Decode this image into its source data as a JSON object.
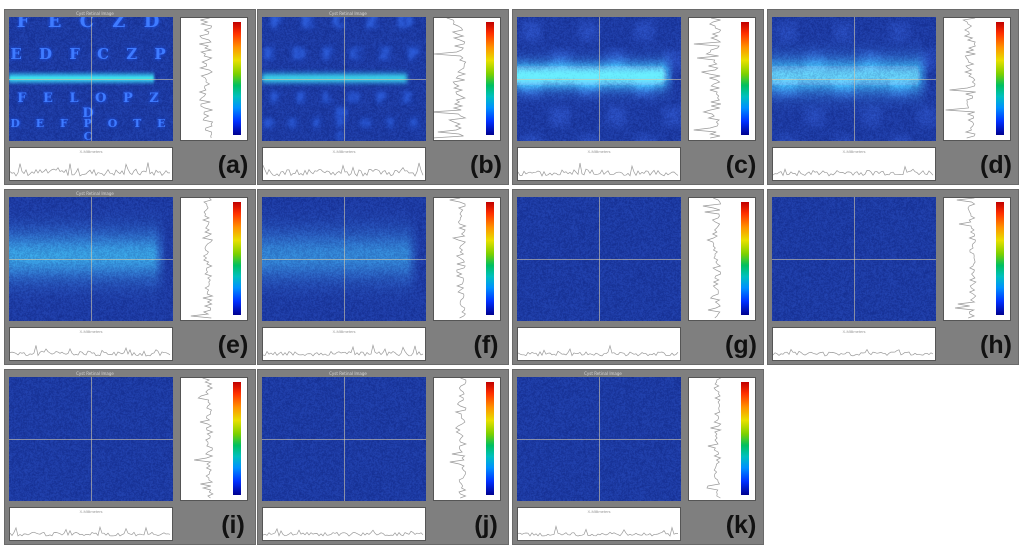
{
  "panels": [
    {
      "label": "(a)",
      "window_title": "Cyst Retinal Image",
      "bottom_axis": "X-Millimeters",
      "scene": "chart-sharp",
      "intensity": 1.0
    },
    {
      "label": "(b)",
      "window_title": "Cyst Retinal Image",
      "bottom_axis": "X-Millimeters",
      "scene": "chart-blur",
      "intensity": 0.9
    },
    {
      "label": "(c)",
      "window_title": "",
      "bottom_axis": "X-Millimeters",
      "scene": "band-strong",
      "intensity": 0.8
    },
    {
      "label": "(d)",
      "window_title": "",
      "bottom_axis": "X-Millimeters",
      "scene": "band-medium",
      "intensity": 0.65
    },
    {
      "label": "(e)",
      "window_title": "Cyst Retinal Image",
      "bottom_axis": "X-Millimeters",
      "scene": "band-faint",
      "intensity": 0.5
    },
    {
      "label": "(f)",
      "window_title": "",
      "bottom_axis": "X-Millimeters",
      "scene": "band-faint",
      "intensity": 0.4
    },
    {
      "label": "(g)",
      "window_title": "",
      "bottom_axis": "",
      "scene": "noise",
      "intensity": 0.3
    },
    {
      "label": "(h)",
      "window_title": "",
      "bottom_axis": "X-Millimeters",
      "scene": "noise",
      "intensity": 0.25
    },
    {
      "label": "(i)",
      "window_title": "Cyst Retinal Image",
      "bottom_axis": "X-Millimeters",
      "scene": "noise",
      "intensity": 0.2
    },
    {
      "label": "(j)",
      "window_title": "Cyst Retinal Image",
      "bottom_axis": "",
      "scene": "noise",
      "intensity": 0.15
    },
    {
      "label": "(k)",
      "window_title": "Cyst Retinal Image",
      "bottom_axis": "X-Millimeters",
      "scene": "noise",
      "intensity": 0.1
    }
  ],
  "chart_rows": [
    "F E C Z D",
    "E D F C Z P",
    "F E L O P Z D",
    "D E F P O T E C"
  ],
  "colors": {
    "panel_bg": "#7f7f7f",
    "image_base": "#0a2a9a",
    "label_text": "#111111"
  }
}
